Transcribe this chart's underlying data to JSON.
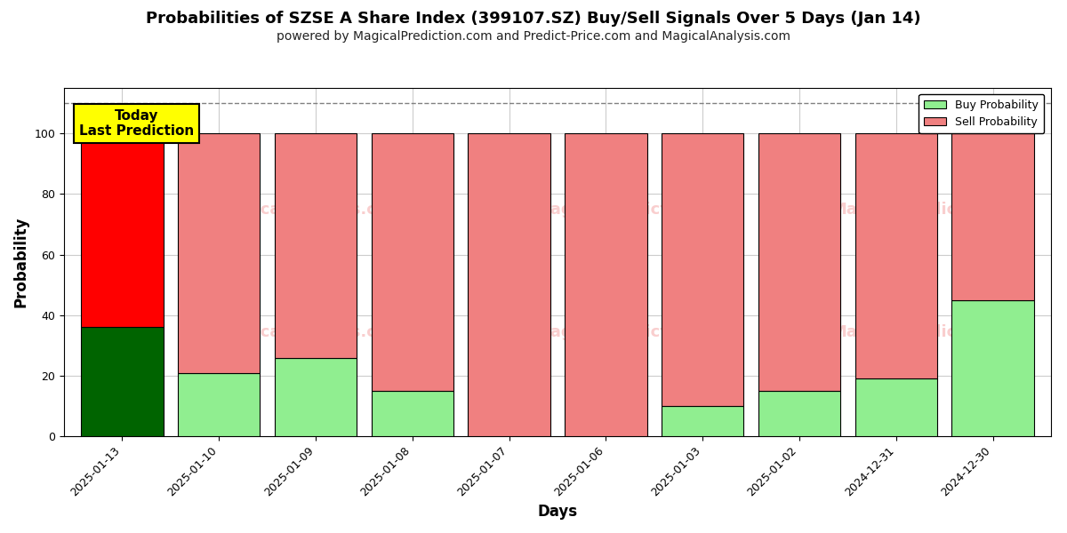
{
  "title": "Probabilities of SZSE A Share Index (399107.SZ) Buy/Sell Signals Over 5 Days (Jan 14)",
  "subtitle": "powered by MagicalPrediction.com and Predict-Price.com and MagicalAnalysis.com",
  "xlabel": "Days",
  "ylabel": "Probability",
  "categories": [
    "2025-01-13",
    "2025-01-10",
    "2025-01-09",
    "2025-01-08",
    "2025-01-07",
    "2025-01-06",
    "2025-01-03",
    "2025-01-02",
    "2024-12-31",
    "2024-12-30"
  ],
  "buy_values": [
    36,
    21,
    26,
    15,
    0,
    0,
    10,
    15,
    19,
    45
  ],
  "sell_values": [
    64,
    79,
    74,
    85,
    100,
    100,
    90,
    85,
    81,
    55
  ],
  "buy_colors": [
    "#006400",
    "#90EE90",
    "#90EE90",
    "#90EE90",
    "#90EE90",
    "#90EE90",
    "#90EE90",
    "#90EE90",
    "#90EE90",
    "#90EE90"
  ],
  "sell_colors": [
    "#FF0000",
    "#F08080",
    "#F08080",
    "#F08080",
    "#F08080",
    "#F08080",
    "#F08080",
    "#F08080",
    "#F08080",
    "#F08080"
  ],
  "today_label": "Today\nLast Prediction",
  "today_index": 0,
  "ylim": [
    0,
    115
  ],
  "dashed_line_y": 110,
  "legend_buy_color": "#90EE90",
  "legend_sell_color": "#F08080",
  "legend_buy_label": "Buy Probability",
  "legend_sell_label": "Sell Probability",
  "background_color": "#ffffff",
  "grid_color": "#cccccc",
  "title_fontsize": 13,
  "subtitle_fontsize": 10,
  "axis_label_fontsize": 12,
  "tick_fontsize": 9,
  "bar_width": 0.85
}
